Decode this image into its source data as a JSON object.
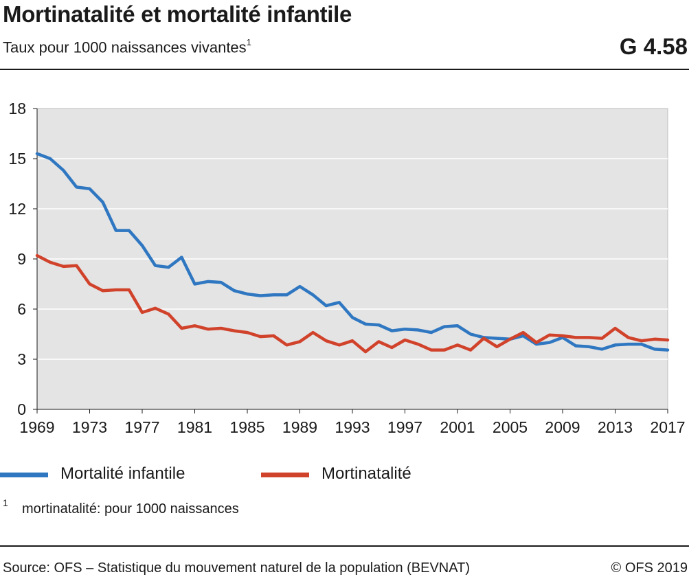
{
  "header": {
    "title": "Mortinatalité et mortalité infantile",
    "subtitle": "Taux pour 1000 naissances vivantes",
    "subtitle_note": "1",
    "code": "G 4.58"
  },
  "footnote": {
    "mark": "1",
    "text": "mortinatalité: pour 1000 naissances"
  },
  "footer": {
    "source": "Source: OFS – Statistique du mouvement naturel de la population (BEVNAT)",
    "copyright": "© OFS 2019"
  },
  "colors": {
    "infant": "#2f77c1",
    "stillbirth": "#d1422b",
    "plot_bg": "#e4e4e4",
    "grid": "#ffffff"
  },
  "chart_data": {
    "type": "line",
    "xlabel": "",
    "ylabel": "",
    "ylim": [
      0,
      18
    ],
    "yticks": [
      0,
      3,
      6,
      9,
      12,
      15,
      18
    ],
    "xlim": [
      1969,
      2017
    ],
    "xticks": [
      1969,
      1973,
      1977,
      1981,
      1985,
      1989,
      1993,
      1997,
      2001,
      2005,
      2009,
      2013,
      2017
    ],
    "grid": true,
    "legend_position": "bottom",
    "x": [
      1969,
      1970,
      1971,
      1972,
      1973,
      1974,
      1975,
      1976,
      1977,
      1978,
      1979,
      1980,
      1981,
      1982,
      1983,
      1984,
      1985,
      1986,
      1987,
      1988,
      1989,
      1990,
      1991,
      1992,
      1993,
      1994,
      1995,
      1996,
      1997,
      1998,
      1999,
      2000,
      2001,
      2002,
      2003,
      2004,
      2005,
      2006,
      2007,
      2008,
      2009,
      2010,
      2011,
      2012,
      2013,
      2014,
      2015,
      2016,
      2017
    ],
    "series": [
      {
        "name": "Mortalité infantile",
        "color": "#2f77c1",
        "values": [
          15.3,
          15.0,
          14.3,
          13.3,
          13.2,
          12.4,
          10.7,
          10.7,
          9.8,
          8.6,
          8.5,
          9.1,
          7.5,
          7.65,
          7.6,
          7.1,
          6.9,
          6.8,
          6.85,
          6.85,
          7.35,
          6.85,
          6.2,
          6.4,
          5.5,
          5.1,
          5.05,
          4.7,
          4.8,
          4.75,
          4.6,
          4.95,
          5.0,
          4.5,
          4.3,
          4.25,
          4.2,
          4.4,
          3.9,
          4.0,
          4.3,
          3.8,
          3.75,
          3.6,
          3.85,
          3.9,
          3.9,
          3.6,
          3.55
        ]
      },
      {
        "name": "Mortinatalité",
        "color": "#d1422b",
        "values": [
          9.2,
          8.8,
          8.55,
          8.6,
          7.5,
          7.1,
          7.15,
          7.15,
          5.8,
          6.05,
          5.7,
          4.85,
          5.0,
          4.8,
          4.85,
          4.7,
          4.6,
          4.35,
          4.4,
          3.85,
          4.05,
          4.6,
          4.1,
          3.85,
          4.1,
          3.45,
          4.05,
          3.7,
          4.15,
          3.9,
          3.55,
          3.55,
          3.85,
          3.55,
          4.25,
          3.75,
          4.2,
          4.6,
          4.0,
          4.45,
          4.4,
          4.3,
          4.3,
          4.25,
          4.85,
          4.3,
          4.1,
          4.2,
          4.15
        ]
      }
    ]
  }
}
